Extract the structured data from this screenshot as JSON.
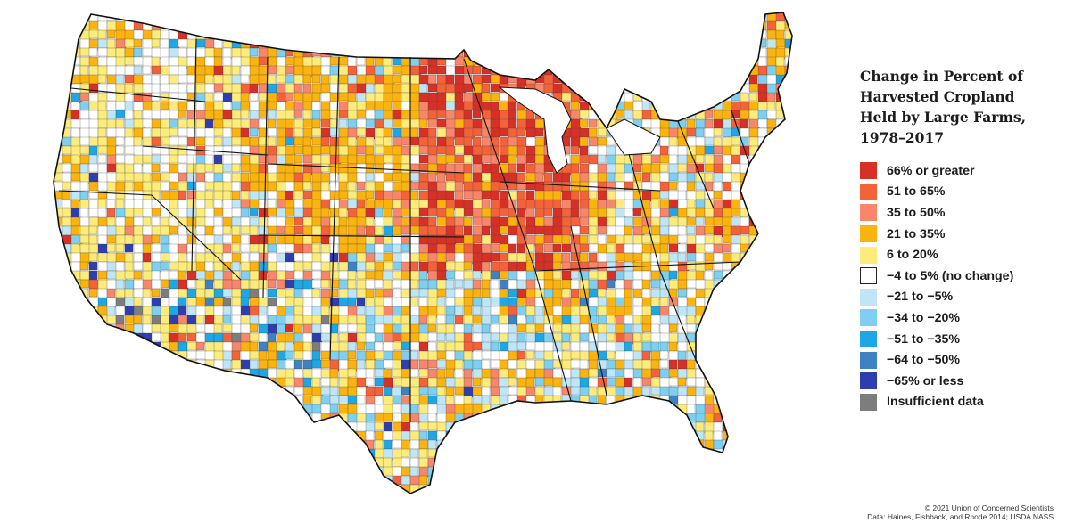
{
  "legend": {
    "title_lines": [
      "Change in Percent of",
      "Harvested Cropland",
      "Held by Large Farms,",
      "1978–2017"
    ],
    "items": [
      {
        "label": "66% or greater",
        "color": "#d73027"
      },
      {
        "label": "51 to 65%",
        "color": "#f4623a"
      },
      {
        "label": "35 to 50%",
        "color": "#f7866a"
      },
      {
        "label": "21 to 35%",
        "color": "#fbb30f"
      },
      {
        "label": "6 to 20%",
        "color": "#fdec7b"
      },
      {
        "label": "−4 to 5% (no change)",
        "color": "#ffffff"
      },
      {
        "label": "−21 to −5%",
        "color": "#bfe6f7"
      },
      {
        "label": "−34 to −20%",
        "color": "#7fd0f0"
      },
      {
        "label": "−51 to −35%",
        "color": "#1fa7e5"
      },
      {
        "label": "−64 to −50%",
        "color": "#3e82c2"
      },
      {
        "label": "−65% or less",
        "color": "#2f3eae"
      },
      {
        "label": "Insufficient data",
        "color": "#7d7d7d"
      }
    ]
  },
  "credits": {
    "copyright": "© 2021 Union of Concerned Scientists",
    "source": "Data: Haines, Fishback, and Rhode 2014; USDA NASS"
  }
}
